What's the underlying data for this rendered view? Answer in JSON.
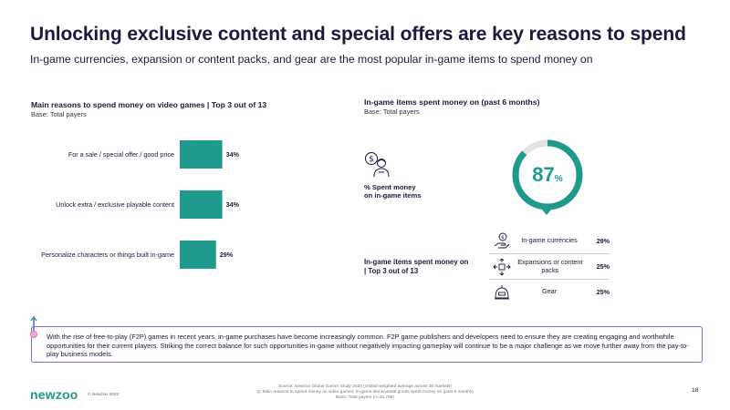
{
  "header": {
    "title": "Unlocking exclusive content and special offers are key reasons to spend",
    "subtitle": "In-game currencies, expansion or content packs, and gear are the most popular in-game items to spend money on"
  },
  "left_section": {
    "title": "Main reasons to spend money on video games | Top 3 out of 13",
    "base": "Base: Total payers"
  },
  "right_section": {
    "title": "In-game items spent money on (past 6 months)",
    "base": "Base: Total payers",
    "spent_value": "87",
    "spent_unit": "%",
    "spent_fraction": 0.87,
    "spent_label_line1": "% Spent money",
    "spent_label_line2": "on in-game items",
    "items_label_line1": "In-game items spent money on",
    "items_label_line2": "| Top 3 out of 13",
    "items": [
      {
        "icon": "coin-hand-icon",
        "name": "In-game currencies",
        "value": "29%"
      },
      {
        "icon": "expansion-pack-icon",
        "name": "Expansions or content packs",
        "value": "25%"
      },
      {
        "icon": "gear-helmet-icon",
        "name": "Gear",
        "value": "25%"
      }
    ]
  },
  "chart_data": {
    "type": "bar",
    "orientation": "horizontal",
    "title": "Main reasons to spend money on video games | Top 3 out of 13",
    "categories": [
      "For a sale / special offer / good price",
      "Unlock extra / exclusive playable content",
      "Personalize characters or things built in-game"
    ],
    "values": [
      34,
      34,
      29
    ],
    "value_labels": [
      "34%",
      "34%",
      "29%"
    ],
    "xlim": [
      0,
      100
    ],
    "grid": false,
    "color": "#1f9a8c"
  },
  "insight": {
    "text": "With the rise of free-to-play (F2P) games in recent years, in-game purchases have become increasingly common. F2P game publishers and developers need to ensure they are creating engaging and worthwhile opportunities for their current players. Striking the correct balance for such opportunities in-game without negatively impacting gameplay will continue to be a major challenge as we move further away from the pay-to-play business models."
  },
  "footer": {
    "logo": "newzoo",
    "copyright": "© Newzoo 2023",
    "source_line1": "Source: Newzoo Global Gamer Study 2023 (Global weighted average across 36 markets)",
    "source_line2": "Q: Main reasons to spend money on video games; In-game items/virtual goods spent money on (past 6 months)",
    "source_line3": "Base: Total payers (n=32,796)",
    "page_number": "18"
  },
  "colors": {
    "teal": "#1f9a8c",
    "navy": "#1a1a3c",
    "purple": "#7a6fc4",
    "track": "#e3e3e3"
  }
}
